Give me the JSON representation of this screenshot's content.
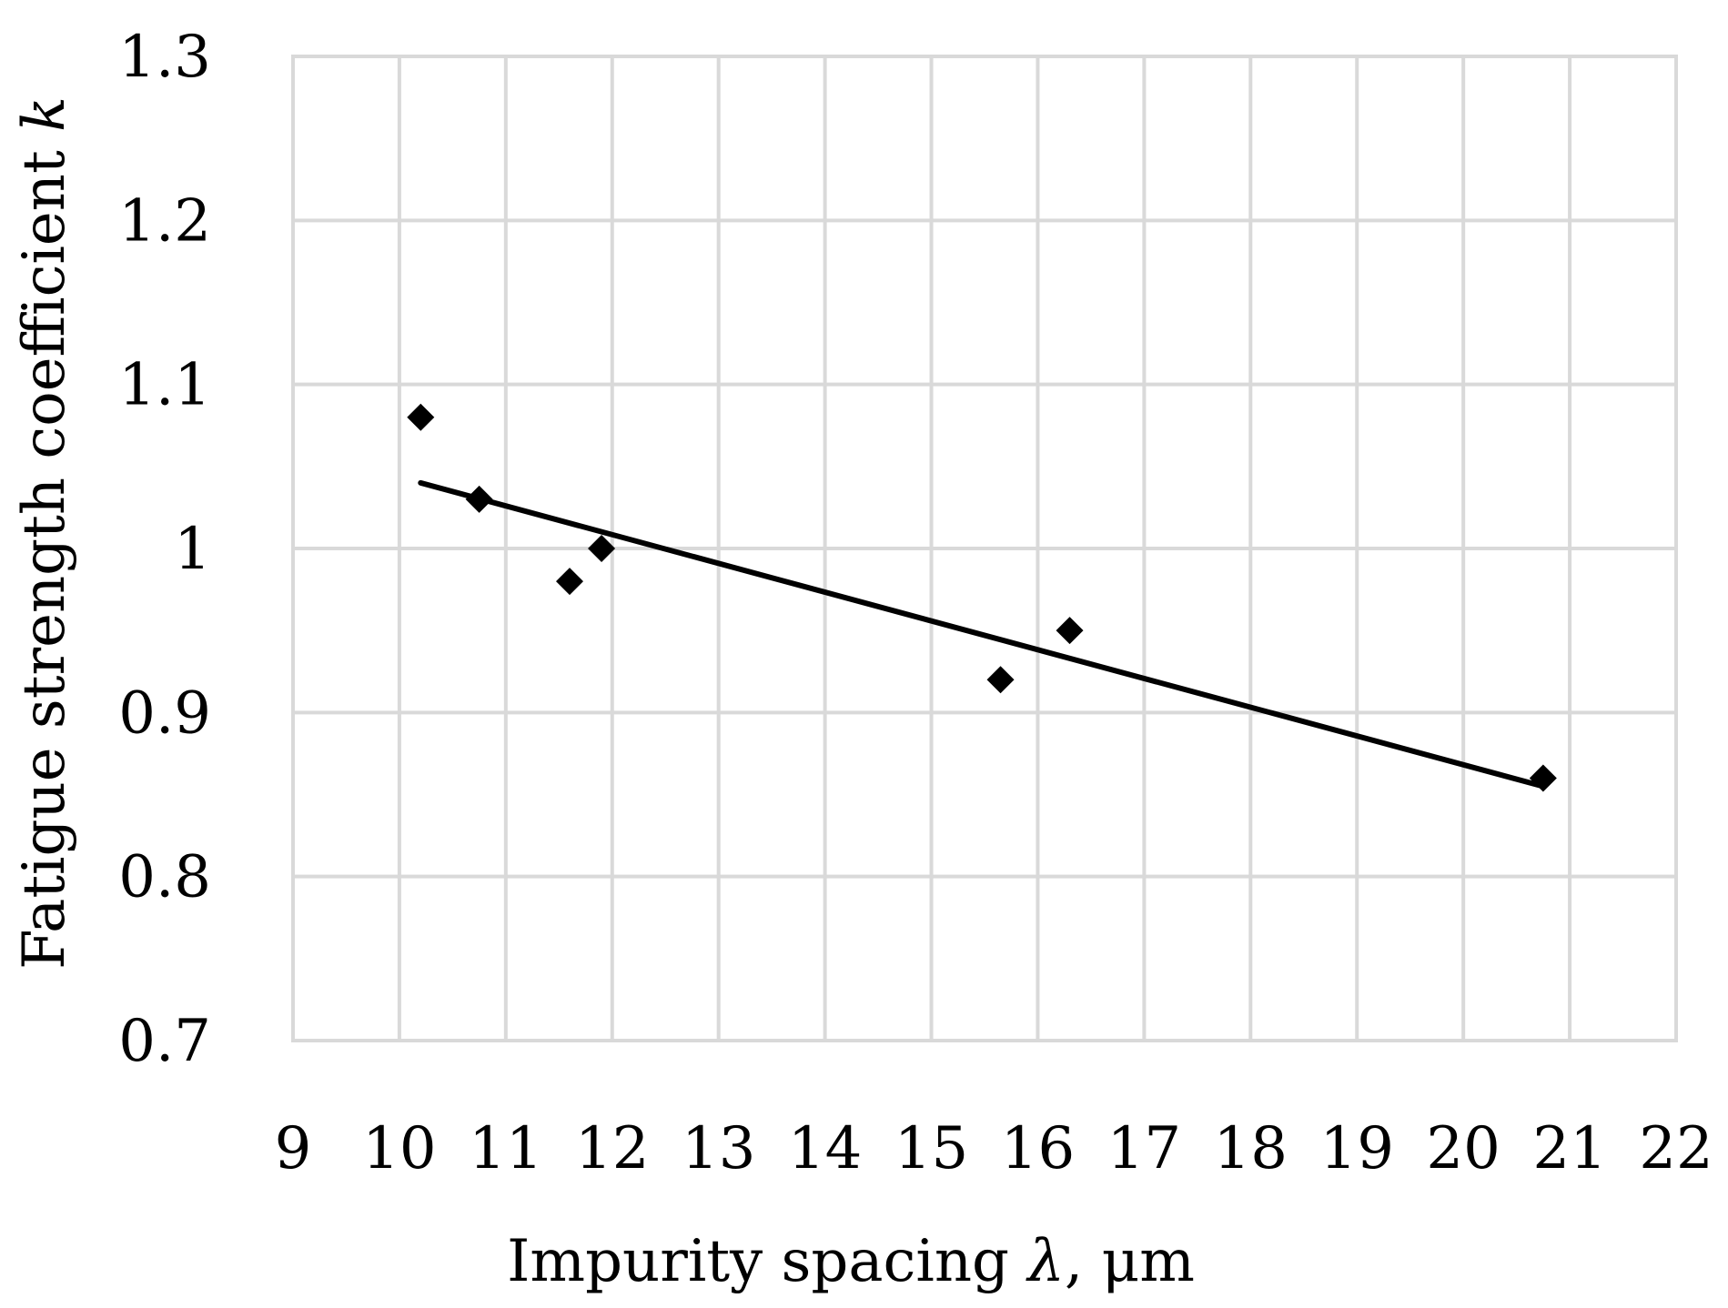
{
  "chart_data": {
    "type": "scatter",
    "title": "",
    "xlabel": "Impurity spacing λ, μm",
    "ylabel": "Fatigue strength coefficient k",
    "xlabel_parts": [
      {
        "text": "Impurity spacing ",
        "italic": false
      },
      {
        "text": "λ",
        "italic": true
      },
      {
        "text": ", μm",
        "italic": false
      }
    ],
    "ylabel_parts": [
      {
        "text": "Fatigue strength coefficient ",
        "italic": false
      },
      {
        "text": "k",
        "italic": true
      }
    ],
    "xlim": [
      9,
      22
    ],
    "ylim": [
      0.7,
      1.3
    ],
    "x_ticks": [
      9,
      10,
      11,
      12,
      13,
      14,
      15,
      16,
      17,
      18,
      19,
      20,
      21,
      22
    ],
    "x_tick_labels": [
      "9",
      "10",
      "11",
      "12",
      "13",
      "14",
      "15",
      "16",
      "17",
      "18",
      "19",
      "20",
      "21",
      "22"
    ],
    "y_ticks": [
      0.7,
      0.8,
      0.9,
      1.0,
      1.1,
      1.2,
      1.3
    ],
    "y_tick_labels": [
      "0.7",
      "0.8",
      "0.9",
      "1",
      "1.1",
      "1.2",
      "1.3"
    ],
    "grid": true,
    "legend": "none",
    "marker": "diamond",
    "marker_color": "#000000",
    "grid_color": "#d9d9d9",
    "series": [
      {
        "points": [
          {
            "x": 10.2,
            "y": 1.08
          },
          {
            "x": 10.75,
            "y": 1.03
          },
          {
            "x": 11.6,
            "y": 0.98
          },
          {
            "x": 11.9,
            "y": 1.0
          },
          {
            "x": 15.65,
            "y": 0.92
          },
          {
            "x": 16.3,
            "y": 0.95
          },
          {
            "x": 20.75,
            "y": 0.86
          }
        ]
      }
    ],
    "trendline": {
      "type": "linear",
      "x_start": 10.2,
      "y_start": 1.04,
      "x_end": 20.75,
      "y_end": 0.855,
      "color": "#000000"
    }
  }
}
